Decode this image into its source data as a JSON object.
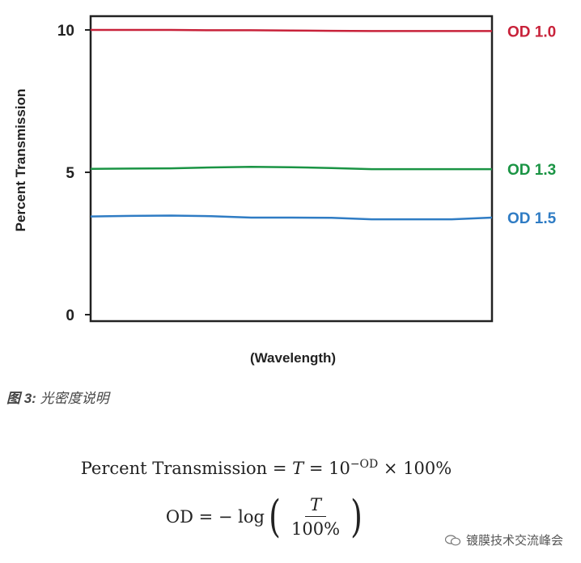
{
  "chart_data": {
    "type": "line",
    "xlabel": "(Wavelength)",
    "ylabel": "Percent Transmission",
    "ylim": [
      0,
      10
    ],
    "yticks": [
      "0",
      "5",
      "10"
    ],
    "x": [
      0,
      10,
      20,
      30,
      40,
      50,
      60,
      70,
      80,
      90,
      100
    ],
    "series": [
      {
        "name": "OD 1.0",
        "color": "#c8223a",
        "values": [
          10.0,
          10.0,
          10.0,
          9.99,
          9.99,
          9.98,
          9.97,
          9.96,
          9.96,
          9.96,
          9.96
        ]
      },
      {
        "name": "OD 1.3",
        "color": "#1a9444",
        "values": [
          5.12,
          5.13,
          5.14,
          5.17,
          5.19,
          5.18,
          5.15,
          5.11,
          5.11,
          5.11,
          5.11
        ]
      },
      {
        "name": "OD 1.5",
        "color": "#2f7cc4",
        "values": [
          3.45,
          3.47,
          3.48,
          3.46,
          3.41,
          3.41,
          3.4,
          3.35,
          3.35,
          3.35,
          3.41
        ]
      }
    ],
    "grid": false
  },
  "caption": {
    "prefix": "图 3:",
    "text": " 光密度说明"
  },
  "formula1": {
    "lhs": "Percent Transmission",
    "mid": " = ",
    "var": "T",
    "eq": " = 10",
    "exp": "−OD",
    "tail": " × 100%"
  },
  "formula2": {
    "lhs": "OD = − log",
    "num": "T",
    "den": "100%"
  },
  "watermark": {
    "text": "镀膜技术交流峰会"
  }
}
